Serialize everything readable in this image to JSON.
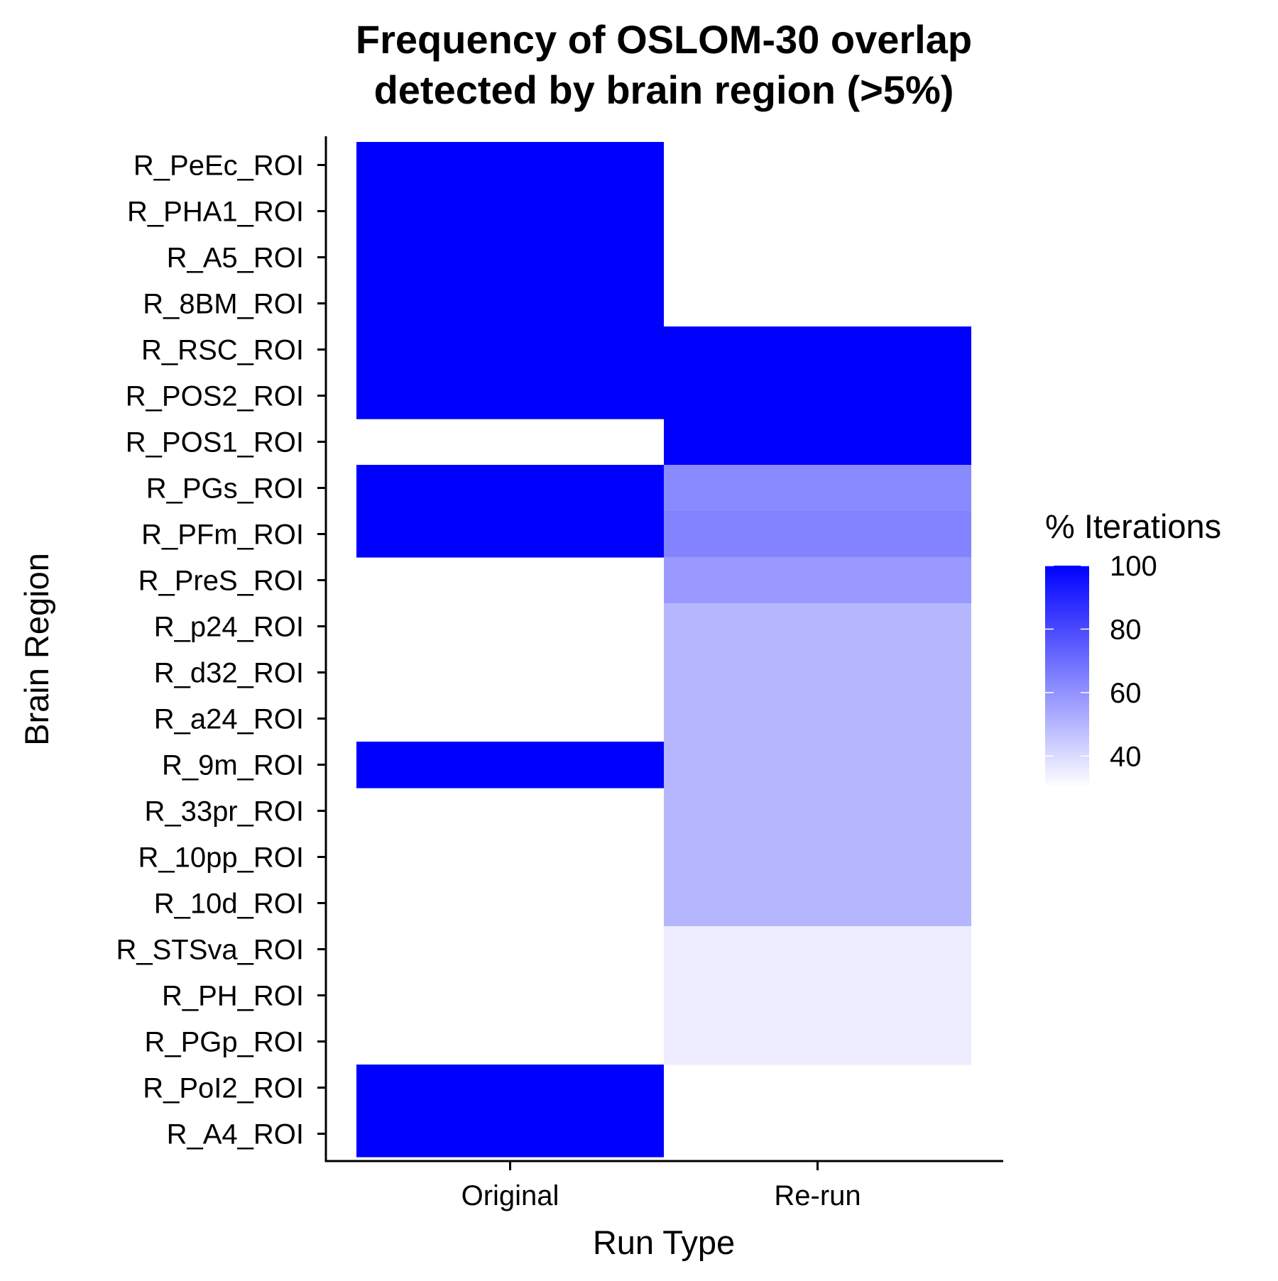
{
  "chart_data": {
    "type": "heatmap",
    "title_lines": [
      "Frequency of OSLOM-30 overlap",
      "detected by brain region (>5%)"
    ],
    "xlabel": "Run Type",
    "ylabel": "Brain Region",
    "x_categories": [
      "Original",
      "Re-run"
    ],
    "y_categories": [
      "R_PeEc_ROI",
      "R_PHA1_ROI",
      "R_A5_ROI",
      "R_8BM_ROI",
      "R_RSC_ROI",
      "R_POS2_ROI",
      "R_POS1_ROI",
      "R_PGs_ROI",
      "R_PFm_ROI",
      "R_PreS_ROI",
      "R_p24_ROI",
      "R_d32_ROI",
      "R_a24_ROI",
      "R_9m_ROI",
      "R_33pr_ROI",
      "R_10pp_ROI",
      "R_10d_ROI",
      "R_STSva_ROI",
      "R_PH_ROI",
      "R_PGp_ROI",
      "R_PoI2_ROI",
      "R_A4_ROI"
    ],
    "values": {
      "Original": [
        100,
        100,
        100,
        100,
        100,
        100,
        null,
        100,
        100,
        null,
        null,
        null,
        null,
        100,
        null,
        null,
        null,
        null,
        null,
        null,
        100,
        100
      ],
      "Re-run": [
        null,
        null,
        null,
        null,
        100,
        100,
        100,
        62,
        64,
        58,
        50,
        50,
        50,
        50,
        50,
        50,
        50,
        35,
        35,
        35,
        null,
        null
      ]
    },
    "legend": {
      "title": "% Iterations",
      "ticks": [
        100,
        80,
        60,
        40
      ],
      "range": [
        30,
        100
      ],
      "low_color": "#ffffff",
      "high_color": "#0000ff",
      "position": "right"
    },
    "grid": false
  }
}
